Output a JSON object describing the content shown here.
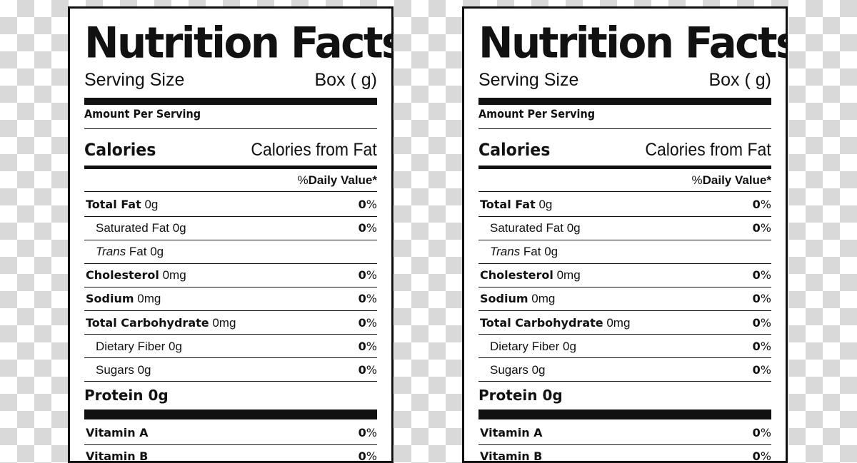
{
  "labels": [
    {
      "title": "Nutrition Facts",
      "serving_size_label": "Serving Size",
      "serving_size_value": "Box ( g)",
      "amount_per_serving": "Amount Per Serving",
      "calories_label": "Calories",
      "calories_from_fat_label": "Calories from Fat",
      "daily_value_percent": "%",
      "daily_value_label": "Daily Value*",
      "nutrients": [
        {
          "name_bold": "Total Fat",
          "name_italic": "",
          "name_rest": " 0g",
          "indent": false,
          "pct": "0",
          "pct_unit": "%"
        },
        {
          "name_bold": "",
          "name_italic": "",
          "name_rest": "Saturated Fat 0g",
          "indent": true,
          "pct": "0",
          "pct_unit": "%"
        },
        {
          "name_bold": "",
          "name_italic": "Trans",
          "name_rest": " Fat 0g",
          "indent": true,
          "pct": "",
          "pct_unit": ""
        },
        {
          "name_bold": "Cholesterol",
          "name_italic": "",
          "name_rest": " 0mg",
          "indent": false,
          "pct": "0",
          "pct_unit": "%"
        },
        {
          "name_bold": "Sodium",
          "name_italic": "",
          "name_rest": " 0mg",
          "indent": false,
          "pct": "0",
          "pct_unit": "%"
        },
        {
          "name_bold": "Total Carbohydrate",
          "name_italic": "",
          "name_rest": " 0mg",
          "indent": false,
          "pct": "0",
          "pct_unit": "%"
        },
        {
          "name_bold": "",
          "name_italic": "",
          "name_rest": "Dietary Fiber 0g",
          "indent": true,
          "pct": "0",
          "pct_unit": "%"
        },
        {
          "name_bold": "",
          "name_italic": "",
          "name_rest": "Sugars 0g",
          "indent": true,
          "pct": "0",
          "pct_unit": "%"
        }
      ],
      "protein_label": "Protein 0g",
      "vitamins": [
        {
          "name": "Vitamin A",
          "pct": "0",
          "pct_unit": "%"
        },
        {
          "name": "Vitamin B",
          "pct": "0",
          "pct_unit": "%"
        }
      ]
    },
    {
      "title": "Nutrition Facts",
      "serving_size_label": "Serving Size",
      "serving_size_value": "Box ( g)",
      "amount_per_serving": "Amount Per Serving",
      "calories_label": "Calories",
      "calories_from_fat_label": "Calories from Fat",
      "daily_value_percent": "%",
      "daily_value_label": "Daily Value*",
      "nutrients": [
        {
          "name_bold": "Total Fat",
          "name_italic": "",
          "name_rest": " 0g",
          "indent": false,
          "pct": "0",
          "pct_unit": "%"
        },
        {
          "name_bold": "",
          "name_italic": "",
          "name_rest": "Saturated Fat 0g",
          "indent": true,
          "pct": "0",
          "pct_unit": "%"
        },
        {
          "name_bold": "",
          "name_italic": "Trans",
          "name_rest": " Fat 0g",
          "indent": true,
          "pct": "",
          "pct_unit": ""
        },
        {
          "name_bold": "Cholesterol",
          "name_italic": "",
          "name_rest": " 0mg",
          "indent": false,
          "pct": "0",
          "pct_unit": "%"
        },
        {
          "name_bold": "Sodium",
          "name_italic": "",
          "name_rest": " 0mg",
          "indent": false,
          "pct": "0",
          "pct_unit": "%"
        },
        {
          "name_bold": "Total Carbohydrate",
          "name_italic": "",
          "name_rest": " 0mg",
          "indent": false,
          "pct": "0",
          "pct_unit": "%"
        },
        {
          "name_bold": "",
          "name_italic": "",
          "name_rest": "Dietary Fiber 0g",
          "indent": true,
          "pct": "0",
          "pct_unit": "%"
        },
        {
          "name_bold": "",
          "name_italic": "",
          "name_rest": "Sugars 0g",
          "indent": true,
          "pct": "0",
          "pct_unit": "%"
        }
      ],
      "protein_label": "Protein 0g",
      "vitamins": [
        {
          "name": "Vitamin A",
          "pct": "0",
          "pct_unit": "%"
        },
        {
          "name": "Vitamin B",
          "pct": "0",
          "pct_unit": "%"
        }
      ]
    }
  ]
}
